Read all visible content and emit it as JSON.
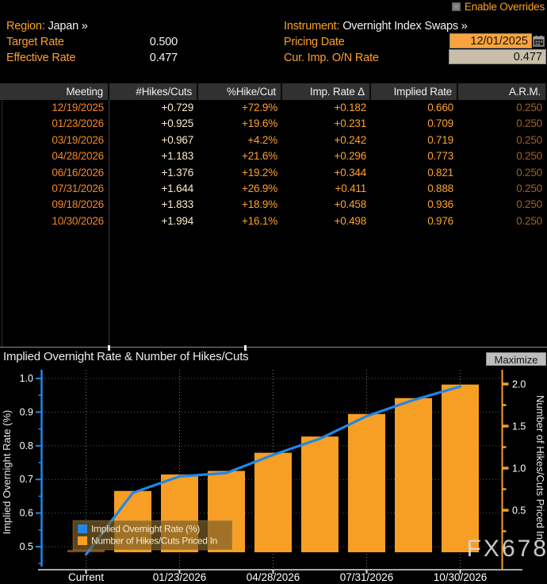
{
  "overrides": {
    "label": "Enable Overrides"
  },
  "header": {
    "region_label": "Region:",
    "region_value": "Japan »",
    "instrument_label": "Instrument:",
    "instrument_value": "Overnight Index Swaps »",
    "target_rate_label": "Target Rate",
    "target_rate_value": "0.500",
    "effective_rate_label": "Effective Rate",
    "effective_rate_value": "0.477",
    "pricing_date_label": "Pricing Date",
    "pricing_date_value": "12/01/2025",
    "cur_imp_label": "Cur. Imp. O/N Rate",
    "cur_imp_value": "0.477"
  },
  "table": {
    "columns": [
      "Meeting",
      "#Hikes/Cuts",
      "%Hike/Cut",
      "Imp. Rate Δ",
      "Implied Rate",
      "A.R.M."
    ],
    "rows": [
      [
        "12/19/2025",
        "+0.729",
        "+72.9%",
        "+0.182",
        "0.660",
        "0.250"
      ],
      [
        "01/23/2026",
        "+0.925",
        "+19.6%",
        "+0.231",
        "0.709",
        "0.250"
      ],
      [
        "03/19/2026",
        "+0.967",
        "+4.2%",
        "+0.242",
        "0.719",
        "0.250"
      ],
      [
        "04/28/2026",
        "+1.183",
        "+21.6%",
        "+0.296",
        "0.773",
        "0.250"
      ],
      [
        "06/16/2026",
        "+1.376",
        "+19.2%",
        "+0.344",
        "0.821",
        "0.250"
      ],
      [
        "07/31/2026",
        "+1.644",
        "+26.9%",
        "+0.411",
        "0.888",
        "0.250"
      ],
      [
        "09/18/2026",
        "+1.833",
        "+18.9%",
        "+0.458",
        "0.936",
        "0.250"
      ],
      [
        "10/30/2026",
        "+1.994",
        "+16.1%",
        "+0.498",
        "0.976",
        "0.250"
      ]
    ]
  },
  "chart": {
    "title": "Implied Overnight Rate & Number of Hikes/Cuts",
    "maximize_label": "Maximize",
    "watermark": "FX678"
  },
  "chart_data": {
    "type": "bar",
    "categories": [
      "Current",
      "12/19/2025",
      "01/23/2026",
      "03/19/2026",
      "04/28/2026",
      "06/16/2026",
      "07/31/2026",
      "09/18/2026",
      "10/30/2026"
    ],
    "x_tick_labels": [
      "Current",
      "01/23/2026",
      "04/28/2026",
      "07/31/2026",
      "10/30/2026"
    ],
    "series": [
      {
        "name": "Implied Overnight Rate (%)",
        "type": "line",
        "axis": "left",
        "color": "#1f87e8",
        "values": [
          0.477,
          0.66,
          0.709,
          0.719,
          0.773,
          0.821,
          0.888,
          0.936,
          0.976
        ]
      },
      {
        "name": "Number of Hikes/Cuts Priced In",
        "type": "bar",
        "axis": "right",
        "color": "#f79e24",
        "values": [
          0,
          0.729,
          0.925,
          0.967,
          1.183,
          1.376,
          1.644,
          1.833,
          1.994
        ]
      }
    ],
    "left_axis": {
      "label": "Implied Overnight Rate (%)",
      "ticks": [
        0.5,
        0.6,
        0.7,
        0.8,
        0.9,
        1.0
      ],
      "range": [
        0.5,
        1.0
      ]
    },
    "right_axis": {
      "label": "Number of Hikes/Cuts Priced In",
      "ticks": [
        0.5,
        1.0,
        1.5,
        2.0
      ],
      "range": [
        0,
        2.0
      ]
    },
    "grid": true,
    "legend_position": "bottom-left",
    "current_bar_color": "#7c4b12"
  }
}
